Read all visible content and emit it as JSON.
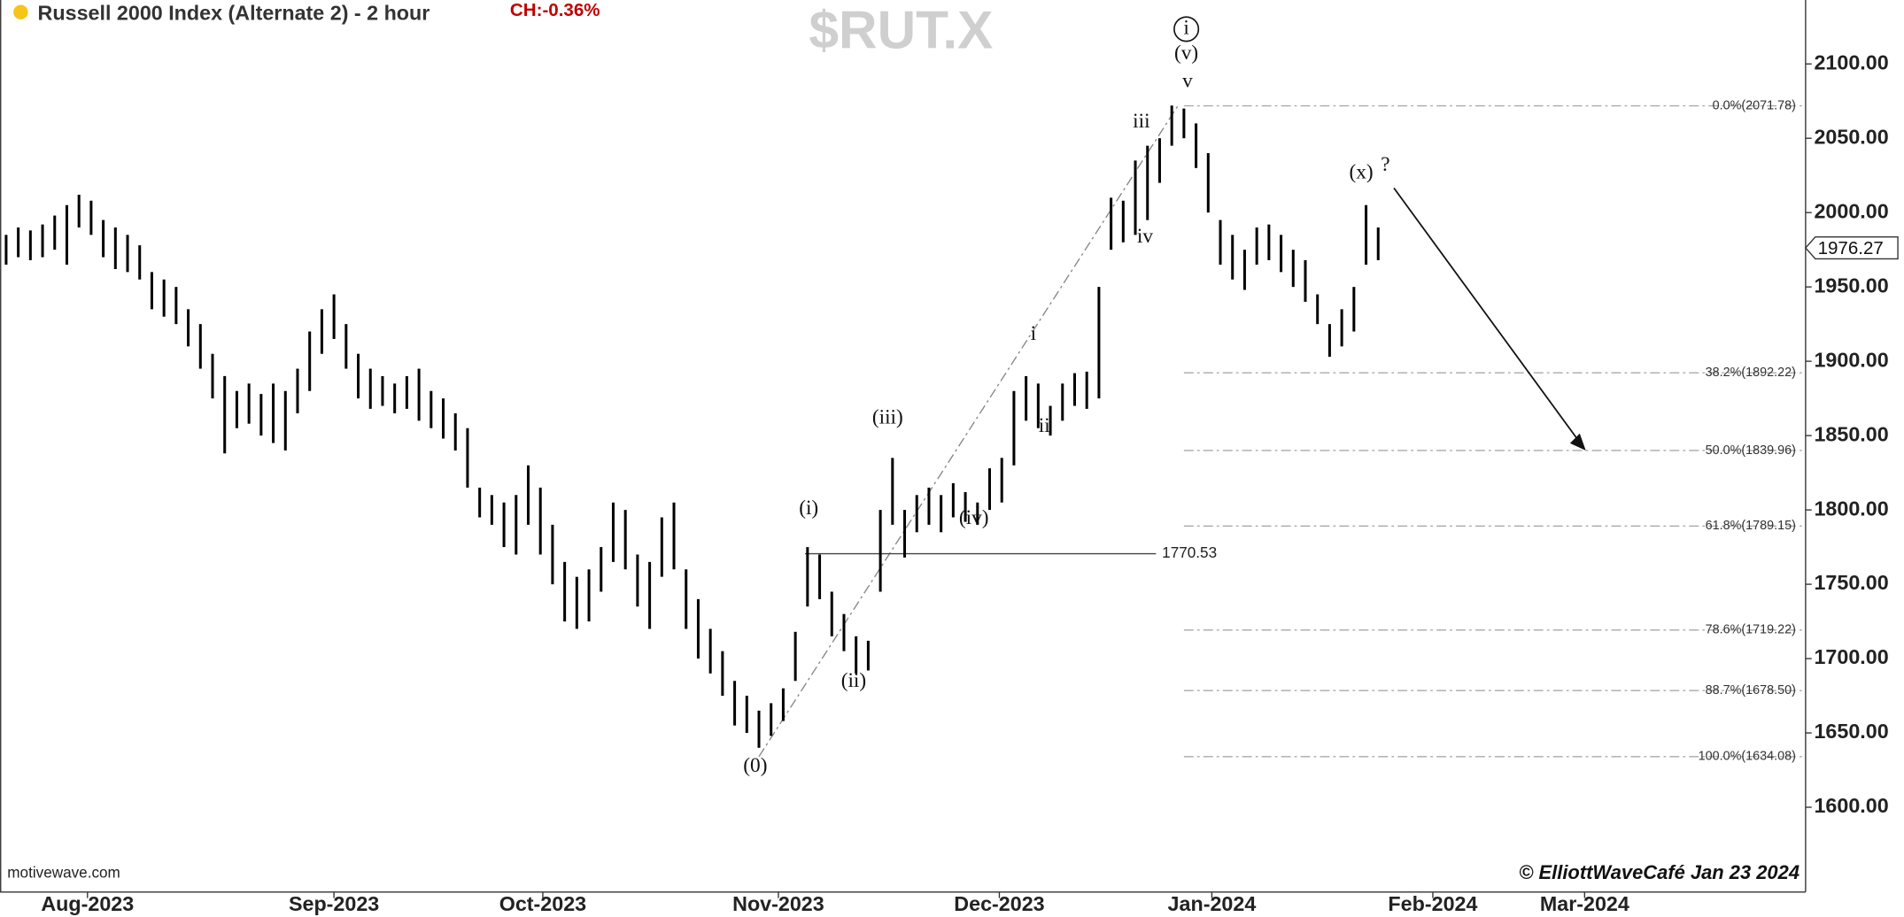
{
  "chart_data": {
    "type": "ohlc",
    "title": "Russell 2000 Index (Alternate 2) - 2 hour",
    "change_label": "CH:-0.36%",
    "watermark": "$RUT.X",
    "source": "motivewave.com",
    "copyright": "© ElliottWaveCafé Jan 23 2024",
    "color": "#000000",
    "x": [
      0.5,
      1.5,
      2.5,
      3.5,
      4.5,
      5.5,
      6.5,
      7.5,
      8.5,
      9.5,
      10.5,
      11.5,
      12.5,
      13.5,
      14.5,
      15.5,
      16.5,
      17.5,
      18.5,
      19.5,
      20.5,
      21.5,
      22.5,
      23.5,
      24.5,
      25.5,
      26.5,
      27.5,
      28.5,
      29.5,
      30.5,
      31.5,
      32.5,
      33.5,
      34.5,
      35.5,
      36.5,
      37.5,
      38.5,
      39.5,
      40.5,
      41.5,
      42.5,
      43.5,
      44.5,
      45.5,
      46.5,
      47.5,
      48.5,
      49.5,
      50.5,
      51.5,
      52.5,
      53.5,
      54.5,
      55.5,
      56.5,
      57.5,
      58.5,
      59.5,
      60.5,
      61.5,
      62.5,
      63.5,
      64.5,
      65.5,
      66.5,
      67.5,
      68.5,
      69.5,
      70.5,
      71.5,
      72.5,
      73.5,
      74.5,
      75.5,
      76.5,
      77.5,
      78.5,
      79.5,
      80.5,
      81.5,
      82.5,
      83.5,
      84.5,
      85.5,
      86.5,
      87.5,
      88.5,
      89.5,
      90.5,
      91.5,
      92.5,
      93.5,
      94.5,
      95.5,
      96.5,
      97.5,
      98.5,
      99.5,
      100.5,
      101.5,
      102.5,
      103.5,
      104.5,
      105.5,
      106.5,
      107.5,
      108.5,
      109.5,
      110.5,
      111.5,
      112.5,
      113.5
    ],
    "high": [
      1985,
      1990,
      1988,
      1992,
      1998,
      2005,
      2012,
      2008,
      1995,
      1990,
      1985,
      1978,
      1960,
      1955,
      1950,
      1935,
      1925,
      1905,
      1890,
      1880,
      1885,
      1878,
      1885,
      1880,
      1895,
      1920,
      1935,
      1945,
      1925,
      1905,
      1895,
      1890,
      1885,
      1890,
      1895,
      1880,
      1875,
      1865,
      1855,
      1815,
      1810,
      1805,
      1810,
      1830,
      1815,
      1790,
      1765,
      1755,
      1760,
      1775,
      1805,
      1800,
      1770,
      1765,
      1795,
      1805,
      1760,
      1740,
      1720,
      1705,
      1685,
      1675,
      1665,
      1670,
      1680,
      1718,
      1775,
      1770,
      1745,
      1730,
      1715,
      1712,
      1800,
      1835,
      1800,
      1810,
      1815,
      1810,
      1818,
      1812,
      1805,
      1828,
      1835,
      1880,
      1890,
      1885,
      1870,
      1885,
      1892,
      1893,
      1950,
      2010,
      2008,
      2035,
      2045,
      2050,
      2072,
      2070,
      2060,
      2040,
      1995,
      1985,
      1975,
      1990,
      1992,
      1985,
      1975,
      1968,
      1945,
      1925,
      1935,
      1950,
      2005,
      1990
    ],
    "low": [
      1965,
      1970,
      1968,
      1970,
      1975,
      1965,
      1990,
      1985,
      1970,
      1962,
      1960,
      1955,
      1935,
      1930,
      1925,
      1910,
      1895,
      1875,
      1838,
      1855,
      1858,
      1850,
      1845,
      1840,
      1865,
      1880,
      1905,
      1915,
      1895,
      1875,
      1868,
      1870,
      1865,
      1868,
      1860,
      1855,
      1848,
      1840,
      1815,
      1795,
      1790,
      1775,
      1770,
      1790,
      1770,
      1750,
      1725,
      1720,
      1725,
      1745,
      1765,
      1760,
      1735,
      1720,
      1755,
      1760,
      1720,
      1700,
      1690,
      1675,
      1655,
      1650,
      1640,
      1648,
      1658,
      1685,
      1735,
      1740,
      1715,
      1705,
      1690,
      1692,
      1745,
      1790,
      1768,
      1785,
      1790,
      1785,
      1795,
      1792,
      1790,
      1800,
      1805,
      1830,
      1860,
      1855,
      1850,
      1860,
      1870,
      1868,
      1875,
      1975,
      1980,
      1985,
      1995,
      2020,
      2045,
      2050,
      2030,
      2000,
      1965,
      1955,
      1948,
      1965,
      1968,
      1960,
      1950,
      1940,
      1925,
      1903,
      1910,
      1920,
      1965,
      1968
    ],
    "last_price": 1976.27,
    "xlim": [
      0,
      148.7
    ],
    "xticks": [
      {
        "value": 7.2,
        "label": "Aug-2023"
      },
      {
        "value": 27.5,
        "label": "Sep-2023"
      },
      {
        "value": 44.7,
        "label": "Oct-2023"
      },
      {
        "value": 64.1,
        "label": "Nov-2023"
      },
      {
        "value": 82.3,
        "label": "Dec-2023"
      },
      {
        "value": 99.8,
        "label": "Jan-2024"
      },
      {
        "value": 118,
        "label": "Feb-2024"
      },
      {
        "value": 130.5,
        "label": "Mar-2024"
      }
    ],
    "ylim": [
      1543,
      2143
    ],
    "yticks": [
      {
        "value": 1600,
        "label": "1600.00"
      },
      {
        "value": 1650,
        "label": "1650.00"
      },
      {
        "value": 1700,
        "label": "1700.00"
      },
      {
        "value": 1750,
        "label": "1750.00"
      },
      {
        "value": 1800,
        "label": "1800.00"
      },
      {
        "value": 1850,
        "label": "1850.00"
      },
      {
        "value": 1900,
        "label": "1900.00"
      },
      {
        "value": 1950,
        "label": "1950.00"
      },
      {
        "value": 2000,
        "label": "2000.00"
      },
      {
        "value": 2050,
        "label": "2050.00"
      },
      {
        "value": 2100,
        "label": "2100.00"
      }
    ],
    "fib_levels": [
      {
        "value": 2071.78,
        "label": "0.0%(2071.78)"
      },
      {
        "value": 1892.22,
        "label": "38.2%(1892.22)"
      },
      {
        "value": 1839.96,
        "label": "50.0%(1839.96)"
      },
      {
        "value": 1789.15,
        "label": "61.8%(1789.15)"
      },
      {
        "value": 1719.22,
        "label": "78.6%(1719.22)"
      },
      {
        "value": 1678.5,
        "label": "88.7%(1678.50)"
      },
      {
        "value": 1634.08,
        "label": "100.0%(1634.08)"
      }
    ],
    "reference_line": 1770.53,
    "wave_labels": [
      "(0)",
      "(i)",
      "(ii)",
      "(iii)",
      "(iv)",
      "i",
      "ii",
      "iii",
      "iv",
      "v",
      "(v)",
      "i",
      "(x)",
      "?"
    ]
  }
}
